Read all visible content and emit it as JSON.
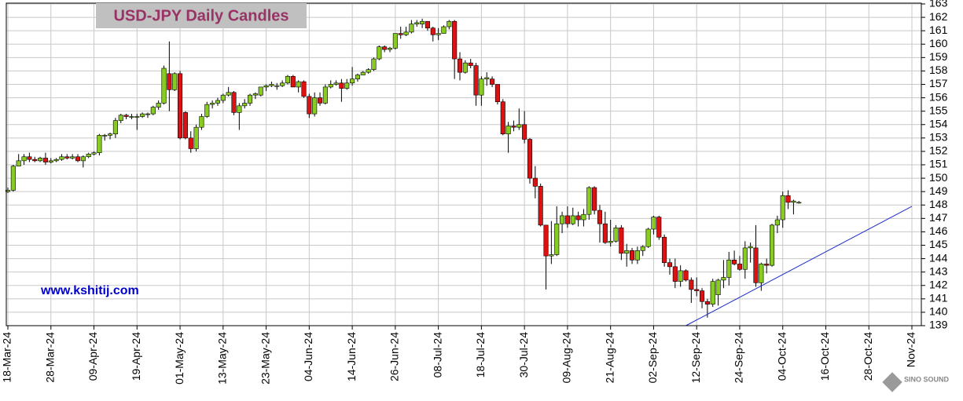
{
  "chart_data": {
    "type": "candlestick",
    "title": "USD-JPY Daily Candles",
    "watermark": "www.kshitij.com",
    "logo": "SINO SOUND",
    "up_color": "#88cc22",
    "down_color": "#dd1111",
    "grid": true,
    "x": [
      "2024-03-18",
      "2024-03-19",
      "2024-03-20",
      "2024-03-21",
      "2024-03-22",
      "2024-03-25",
      "2024-03-26",
      "2024-03-27",
      "2024-03-28",
      "2024-03-29",
      "2024-04-01",
      "2024-04-02",
      "2024-04-03",
      "2024-04-04",
      "2024-04-05",
      "2024-04-08",
      "2024-04-09",
      "2024-04-10",
      "2024-04-11",
      "2024-04-12",
      "2024-04-15",
      "2024-04-16",
      "2024-04-17",
      "2024-04-18",
      "2024-04-19",
      "2024-04-22",
      "2024-04-23",
      "2024-04-24",
      "2024-04-25",
      "2024-04-26",
      "2024-04-29",
      "2024-04-30",
      "2024-05-01",
      "2024-05-02",
      "2024-05-03",
      "2024-05-06",
      "2024-05-07",
      "2024-05-08",
      "2024-05-09",
      "2024-05-10",
      "2024-05-13",
      "2024-05-14",
      "2024-05-15",
      "2024-05-16",
      "2024-05-17",
      "2024-05-20",
      "2024-05-21",
      "2024-05-22",
      "2024-05-23",
      "2024-05-24",
      "2024-05-27",
      "2024-05-28",
      "2024-05-29",
      "2024-05-30",
      "2024-05-31",
      "2024-06-03",
      "2024-06-04",
      "2024-06-05",
      "2024-06-06",
      "2024-06-07",
      "2024-06-10",
      "2024-06-11",
      "2024-06-12",
      "2024-06-13",
      "2024-06-14",
      "2024-06-17",
      "2024-06-18",
      "2024-06-19",
      "2024-06-20",
      "2024-06-21",
      "2024-06-24",
      "2024-06-25",
      "2024-06-26",
      "2024-06-27",
      "2024-06-28",
      "2024-07-01",
      "2024-07-02",
      "2024-07-03",
      "2024-07-04",
      "2024-07-05",
      "2024-07-08",
      "2024-07-09",
      "2024-07-10",
      "2024-07-11",
      "2024-07-12",
      "2024-07-15",
      "2024-07-16",
      "2024-07-17",
      "2024-07-18",
      "2024-07-19",
      "2024-07-22",
      "2024-07-23",
      "2024-07-24",
      "2024-07-25",
      "2024-07-26",
      "2024-07-29",
      "2024-07-30",
      "2024-07-31",
      "2024-08-01",
      "2024-08-02",
      "2024-08-05",
      "2024-08-06",
      "2024-08-07",
      "2024-08-08",
      "2024-08-09",
      "2024-08-12",
      "2024-08-13",
      "2024-08-14",
      "2024-08-15",
      "2024-08-16",
      "2024-08-19",
      "2024-08-20",
      "2024-08-21",
      "2024-08-22",
      "2024-08-23",
      "2024-08-26",
      "2024-08-27",
      "2024-08-28",
      "2024-08-29",
      "2024-08-30",
      "2024-09-02",
      "2024-09-03",
      "2024-09-04",
      "2024-09-05",
      "2024-09-06",
      "2024-09-09",
      "2024-09-10",
      "2024-09-11",
      "2024-09-12",
      "2024-09-13",
      "2024-09-16",
      "2024-09-17",
      "2024-09-18",
      "2024-09-19",
      "2024-09-20",
      "2024-09-23",
      "2024-09-24",
      "2024-09-25",
      "2024-09-26",
      "2024-09-27",
      "2024-09-30",
      "2024-10-01",
      "2024-10-02",
      "2024-10-03",
      "2024-10-04",
      "2024-10-07",
      "2024-10-08",
      "2024-10-09"
    ],
    "open": [
      149.0,
      149.1,
      150.9,
      151.3,
      151.6,
      151.4,
      151.3,
      151.5,
      151.2,
      151.3,
      151.4,
      151.6,
      151.5,
      151.6,
      151.3,
      151.6,
      151.8,
      151.9,
      153.2,
      153.2,
      153.3,
      154.3,
      154.7,
      154.6,
      154.6,
      154.6,
      154.8,
      154.8,
      155.3,
      155.6,
      157.8,
      156.6,
      157.8,
      154.9,
      153.0,
      152.2,
      153.8,
      154.6,
      155.5,
      155.6,
      155.8,
      156.2,
      156.4,
      154.9,
      155.4,
      155.6,
      156.2,
      156.2,
      156.8,
      156.9,
      156.9,
      156.9,
      157.1,
      157.6,
      156.8,
      157.2,
      156.1,
      154.8,
      156.0,
      155.6,
      156.8,
      157.0,
      157.1,
      156.7,
      157.1,
      157.4,
      157.7,
      157.9,
      158.1,
      158.9,
      159.8,
      159.6,
      159.7,
      160.8,
      160.7,
      160.9,
      161.5,
      161.5,
      161.7,
      161.2,
      160.7,
      160.8,
      161.3,
      161.7,
      158.9,
      157.9,
      158.6,
      158.4,
      156.2,
      157.4,
      157.4,
      157.0,
      155.7,
      153.3,
      153.9,
      153.8,
      154.0,
      152.9,
      150.0,
      149.4,
      146.5,
      144.2,
      144.3,
      146.6,
      147.2,
      146.6,
      147.2,
      146.9,
      147.3,
      149.3,
      147.6,
      146.6,
      145.2,
      145.3,
      146.3,
      144.4,
      144.6,
      143.9,
      144.6,
      144.9,
      146.2,
      147.1,
      145.6,
      143.7,
      143.4,
      142.3,
      143.1,
      142.4,
      141.7,
      141.6,
      140.8,
      140.6,
      141.3,
      142.4,
      142.6,
      143.9,
      143.6,
      143.2,
      144.8,
      144.8,
      142.2,
      143.6,
      143.5,
      146.5,
      146.9,
      148.7,
      148.2,
      148.2
    ],
    "high": [
      149.3,
      151.0,
      151.8,
      151.8,
      151.9,
      151.6,
      151.6,
      151.9,
      151.5,
      151.5,
      151.8,
      151.8,
      151.8,
      151.8,
      151.7,
      151.9,
      152.0,
      153.3,
      153.3,
      153.4,
      154.5,
      154.8,
      154.8,
      154.8,
      154.8,
      154.9,
      154.9,
      155.4,
      155.8,
      158.4,
      160.2,
      157.9,
      158.0,
      155.0,
      153.5,
      154.0,
      154.8,
      155.7,
      155.8,
      156.0,
      156.3,
      156.8,
      156.5,
      155.6,
      155.9,
      156.3,
      156.4,
      156.8,
      157.0,
      157.2,
      157.1,
      157.3,
      157.7,
      157.7,
      157.3,
      157.3,
      156.3,
      156.4,
      156.4,
      157.0,
      157.3,
      157.3,
      157.4,
      157.4,
      158.3,
      157.8,
      158.0,
      158.2,
      159.0,
      159.9,
      159.9,
      159.8,
      160.8,
      161.3,
      161.3,
      161.8,
      161.8,
      161.9,
      161.7,
      161.3,
      161.2,
      161.4,
      161.8,
      161.8,
      159.4,
      158.8,
      158.9,
      158.6,
      157.6,
      157.9,
      157.6,
      157.0,
      155.9,
      154.2,
      154.3,
      155.2,
      155.0,
      153.0,
      150.9,
      149.6,
      146.5,
      146.8,
      147.9,
      147.5,
      147.9,
      147.8,
      147.5,
      147.7,
      149.4,
      149.4,
      148.0,
      147.5,
      146.9,
      146.5,
      146.5,
      145.1,
      144.8,
      144.9,
      145.0,
      146.3,
      147.2,
      147.2,
      145.8,
      144.0,
      144.0,
      143.5,
      143.2,
      142.6,
      142.6,
      141.8,
      141.0,
      142.5,
      142.5,
      143.9,
      144.5,
      144.6,
      144.2,
      145.3,
      145.2,
      146.5,
      143.7,
      144.0,
      146.6,
      147.2,
      149.0,
      149.1,
      148.4,
      148.3
    ],
    "low": [
      148.9,
      149.0,
      150.9,
      151.0,
      151.2,
      151.2,
      151.2,
      151.0,
      151.1,
      151.2,
      151.3,
      151.4,
      151.4,
      151.2,
      150.8,
      151.5,
      151.7,
      151.7,
      152.8,
      152.9,
      153.0,
      154.1,
      154.4,
      154.4,
      153.6,
      154.5,
      154.5,
      154.7,
      155.1,
      155.5,
      155.0,
      156.5,
      152.9,
      152.9,
      151.9,
      152.0,
      153.6,
      154.5,
      155.2,
      155.4,
      155.6,
      156.1,
      154.7,
      153.6,
      155.2,
      155.4,
      155.9,
      156.1,
      156.5,
      156.8,
      156.6,
      156.8,
      157.0,
      156.8,
      156.4,
      156.0,
      154.5,
      154.6,
      155.4,
      155.5,
      156.7,
      156.9,
      155.7,
      156.6,
      156.9,
      157.2,
      157.7,
      157.8,
      158.0,
      158.8,
      159.4,
      159.4,
      159.6,
      160.4,
      160.6,
      160.8,
      161.3,
      161.2,
      161.0,
      160.2,
      160.3,
      160.8,
      161.1,
      157.4,
      157.3,
      157.8,
      158.2,
      155.4,
      155.4,
      156.9,
      156.8,
      155.5,
      153.2,
      151.9,
      153.5,
      153.6,
      152.6,
      149.6,
      148.5,
      146.4,
      141.7,
      143.6,
      144.2,
      145.9,
      146.3,
      146.5,
      146.4,
      146.4,
      146.9,
      147.3,
      145.2,
      145.1,
      144.9,
      145.2,
      143.9,
      143.4,
      143.6,
      143.6,
      144.2,
      144.8,
      145.8,
      145.4,
      143.4,
      142.8,
      141.8,
      141.9,
      142.3,
      140.7,
      141.2,
      140.3,
      139.6,
      140.4,
      140.5,
      141.8,
      142.0,
      143.5,
      143.1,
      142.5,
      143.7,
      141.9,
      141.6,
      142.9,
      143.4,
      145.9,
      146.3,
      147.7,
      147.3,
      148.1
    ],
    "close": [
      149.1,
      150.9,
      151.3,
      151.6,
      151.4,
      151.3,
      151.5,
      151.2,
      151.3,
      151.4,
      151.6,
      151.5,
      151.6,
      151.3,
      151.6,
      151.8,
      151.9,
      153.2,
      153.2,
      153.3,
      154.3,
      154.7,
      154.6,
      154.6,
      154.6,
      154.8,
      154.8,
      155.3,
      155.6,
      158.2,
      156.6,
      157.8,
      153.0,
      153.0,
      152.2,
      153.8,
      154.6,
      155.5,
      155.6,
      155.8,
      156.2,
      156.4,
      154.9,
      155.4,
      155.6,
      156.2,
      156.3,
      156.8,
      156.9,
      157.0,
      156.9,
      157.1,
      157.6,
      156.8,
      157.2,
      156.1,
      154.8,
      156.0,
      155.6,
      156.8,
      157.0,
      157.1,
      156.7,
      157.1,
      157.4,
      157.7,
      157.9,
      158.1,
      158.9,
      159.8,
      159.6,
      159.7,
      160.8,
      160.7,
      160.9,
      161.5,
      161.6,
      161.7,
      161.2,
      160.7,
      160.8,
      161.3,
      161.7,
      158.9,
      157.9,
      158.6,
      158.4,
      156.2,
      157.4,
      157.5,
      157.0,
      155.7,
      153.3,
      153.9,
      153.8,
      154.0,
      152.9,
      150.0,
      149.4,
      146.5,
      144.2,
      144.3,
      146.6,
      147.2,
      146.6,
      147.2,
      146.9,
      147.3,
      149.3,
      147.6,
      146.6,
      145.2,
      145.3,
      146.3,
      144.4,
      144.6,
      143.9,
      144.6,
      144.9,
      146.2,
      147.1,
      145.6,
      143.7,
      143.4,
      142.3,
      143.1,
      142.4,
      141.7,
      141.6,
      140.8,
      140.6,
      142.3,
      142.4,
      142.6,
      143.9,
      143.6,
      143.2,
      144.8,
      144.9,
      142.2,
      143.6,
      143.5,
      146.5,
      146.9,
      148.7,
      148.2,
      148.3,
      148.2
    ],
    "trendline": {
      "color": "#1a2bcc",
      "start": {
        "x": "2024-09-10",
        "y": 139
      },
      "end": {
        "x": "2024-11-07",
        "y": 147.9
      }
    },
    "xlim": [
      "2024-03-18",
      "2024-11-07"
    ],
    "xticks": [
      {
        "value": "2024-03-18",
        "label": "18-Mar-24"
      },
      {
        "value": "2024-03-28",
        "label": "28-Mar-24"
      },
      {
        "value": "2024-04-09",
        "label": "09-Apr-24"
      },
      {
        "value": "2024-04-19",
        "label": "19-Apr-24"
      },
      {
        "value": "2024-05-01",
        "label": "01-May-24"
      },
      {
        "value": "2024-05-13",
        "label": "13-May-24"
      },
      {
        "value": "2024-05-23",
        "label": "23-May-24"
      },
      {
        "value": "2024-06-04",
        "label": "04-Jun-24"
      },
      {
        "value": "2024-06-14",
        "label": "14-Jun-24"
      },
      {
        "value": "2024-06-26",
        "label": "26-Jun-24"
      },
      {
        "value": "2024-07-08",
        "label": "08-Jul-24"
      },
      {
        "value": "2024-07-18",
        "label": "18-Jul-24"
      },
      {
        "value": "2024-07-30",
        "label": "30-Jul-24"
      },
      {
        "value": "2024-08-09",
        "label": "09-Aug-24"
      },
      {
        "value": "2024-08-21",
        "label": "21-Aug-24"
      },
      {
        "value": "2024-09-02",
        "label": "02-Sep-24"
      },
      {
        "value": "2024-09-12",
        "label": "12-Sep-24"
      },
      {
        "value": "2024-09-24",
        "label": "24-Sep-24"
      },
      {
        "value": "2024-10-04",
        "label": "04-Oct-24"
      },
      {
        "value": "2024-10-16",
        "label": "16-Oct-24"
      },
      {
        "value": "2024-10-28",
        "label": "28-Oct-24"
      },
      {
        "value": "2024-11-07",
        "label": "Nov-24"
      }
    ],
    "ylim": [
      139,
      163
    ],
    "yticks": [
      139,
      140,
      141,
      142,
      143,
      144,
      145,
      146,
      147,
      148,
      149,
      150,
      151,
      152,
      153,
      154,
      155,
      156,
      157,
      158,
      159,
      160,
      161,
      162,
      163
    ]
  }
}
